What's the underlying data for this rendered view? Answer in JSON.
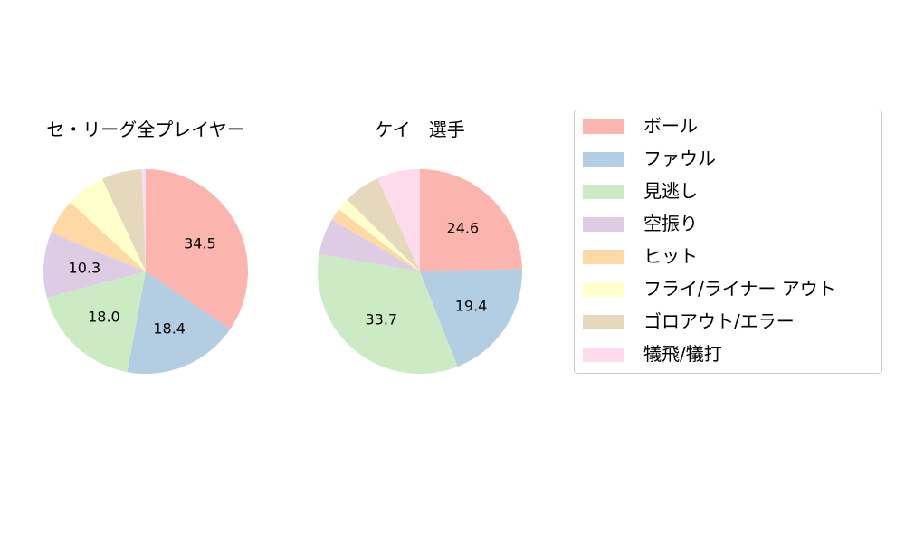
{
  "chart_data": [
    {
      "type": "pie",
      "title": "セ・リーグ全プレイヤー",
      "categories": [
        "ボール",
        "ファウル",
        "見逃し",
        "空振り",
        "ヒット",
        "フライ/ライナー アウト",
        "ゴロアウト/エラー",
        "犠飛/犠打"
      ],
      "values": [
        34.5,
        18.4,
        18.0,
        10.3,
        5.6,
        6.2,
        6.4,
        0.6
      ],
      "labels_shown": [
        "34.5",
        "18.4",
        "18.0",
        "10.3",
        "",
        "",
        "",
        ""
      ]
    },
    {
      "type": "pie",
      "title": "ケイ　選手",
      "categories": [
        "ボール",
        "ファウル",
        "見逃し",
        "空振り",
        "ヒット",
        "フライ/ライナー アウト",
        "ゴロアウト/エラー",
        "犠飛/犠打"
      ],
      "values": [
        24.6,
        19.4,
        33.7,
        5.8,
        1.9,
        2.0,
        5.8,
        6.8
      ],
      "labels_shown": [
        "24.6",
        "19.4",
        "33.7",
        "",
        "",
        "",
        "",
        ""
      ]
    }
  ],
  "legend": {
    "placement": "right",
    "items": [
      "ボール",
      "ファウル",
      "見逃し",
      "空振り",
      "ヒット",
      "フライ/ライナー アウト",
      "ゴロアウト/エラー",
      "犠飛/犠打"
    ]
  },
  "colors": [
    "#fbb4ae",
    "#b3cde3",
    "#ccebc5",
    "#decbe4",
    "#fed9a6",
    "#ffffcc",
    "#e5d8bd",
    "#fddaec"
  ]
}
